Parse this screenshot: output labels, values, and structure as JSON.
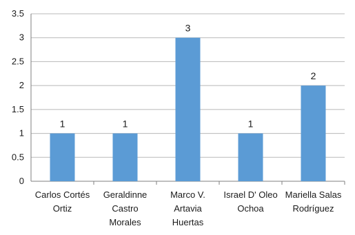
{
  "chart_data": {
    "type": "bar",
    "categories": [
      [
        "Carlos Cortés",
        "Ortiz"
      ],
      [
        "Geraldinne",
        "Castro",
        "Morales"
      ],
      [
        "Marco V.",
        "Artavia",
        "Huertas"
      ],
      [
        "Israel D' Oleo",
        "Ochoa"
      ],
      [
        "Mariella Salas",
        "Rodríguez"
      ]
    ],
    "values": [
      1,
      1,
      3,
      1,
      2
    ],
    "data_labels": [
      "1",
      "1",
      "3",
      "1",
      "2"
    ],
    "y_ticks": [
      "0",
      "0.5",
      "1",
      "1.5",
      "2",
      "2.5",
      "3",
      "3.5"
    ],
    "ylim": [
      0,
      3.5
    ],
    "grid": true,
    "title": "",
    "xlabel": "",
    "ylabel": "",
    "colors": {
      "bar": "#5b9bd5",
      "grid": "#b8b8b8",
      "axis": "#7f7f7f"
    }
  }
}
